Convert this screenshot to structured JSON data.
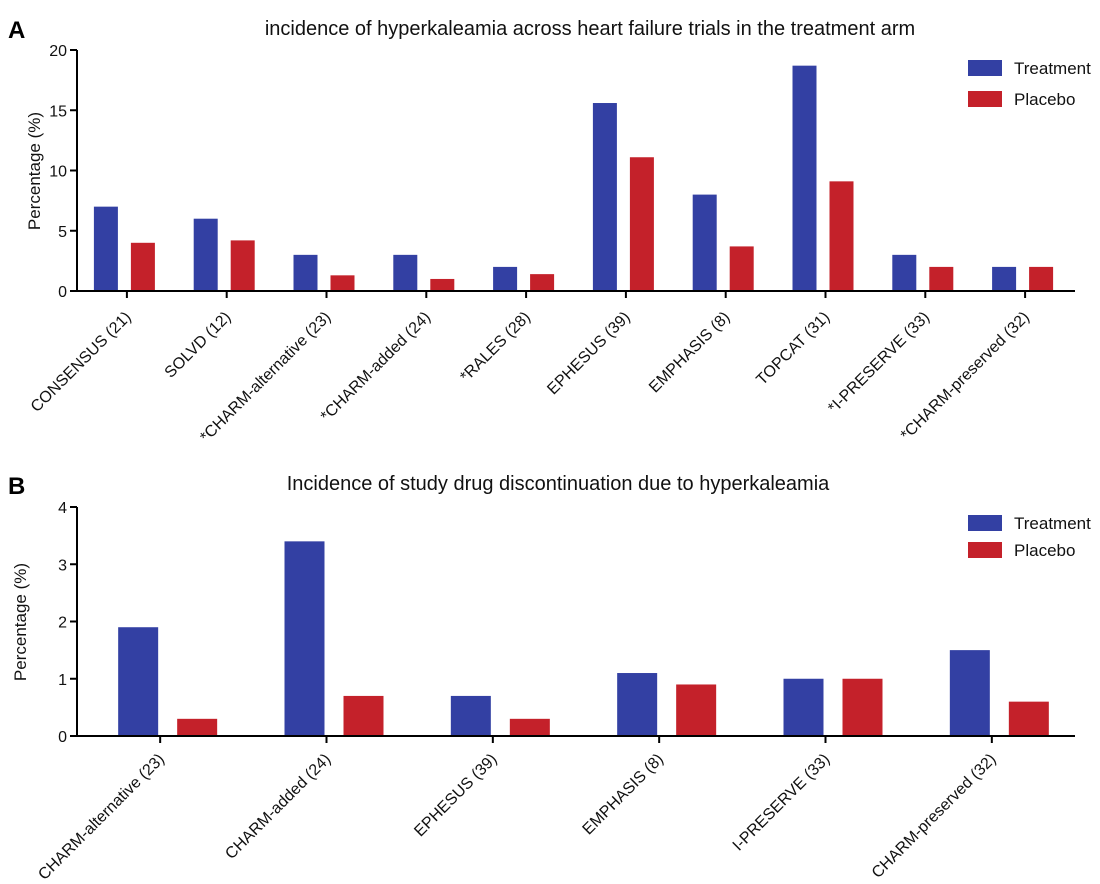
{
  "colors": {
    "treatment": "#3340a3",
    "placebo": "#c4212a"
  },
  "chart_data": [
    {
      "panel": "A",
      "type": "bar",
      "title": "incidence of hyperkaleamia across heart failure trials in the treatment arm",
      "ylabel": "Percentage (%)",
      "xlabel": "",
      "ylim": [
        0,
        20
      ],
      "yticks": [
        "0",
        "5",
        "10",
        "15",
        "20"
      ],
      "legend": "top-right",
      "categories": [
        "CONSENSUS (21)",
        "SOLVD (12)",
        "*CHARM-alternative (23)",
        "*CHARM-added (24)",
        "*RALES (28)",
        "EPHESUS (39)",
        "EMPHASIS (8)",
        "TOPCAT (31)",
        "*I-PRESERVE (33)",
        "*CHARM-preserved (32)"
      ],
      "series": [
        {
          "name": "Treatment",
          "values": [
            7.0,
            6.0,
            3.0,
            3.0,
            2.0,
            15.6,
            8.0,
            18.7,
            3.0,
            2.0
          ]
        },
        {
          "name": "Placebo",
          "values": [
            4.0,
            4.2,
            1.3,
            1.0,
            1.4,
            11.1,
            3.7,
            9.1,
            2.0,
            2.0
          ]
        }
      ]
    },
    {
      "panel": "B",
      "type": "bar",
      "title": "Incidence of study drug discontinuation due to hyperkaleamia",
      "ylabel": "Percentage (%)",
      "xlabel": "",
      "ylim": [
        0,
        4
      ],
      "yticks": [
        "0",
        "1",
        "2",
        "3",
        "4"
      ],
      "legend": "top-right",
      "categories": [
        "CHARM-alternative (23)",
        "CHARM-added (24)",
        "EPHESUS (39)",
        "EMPHASIS (8)",
        "I-PRESERVE (33)",
        "CHARM-preserved (32)"
      ],
      "series": [
        {
          "name": "Treatment",
          "values": [
            1.9,
            3.4,
            0.7,
            1.1,
            1.0,
            1.5
          ]
        },
        {
          "name": "Placebo",
          "values": [
            0.3,
            0.7,
            0.3,
            0.9,
            1.0,
            0.6
          ]
        }
      ]
    }
  ]
}
